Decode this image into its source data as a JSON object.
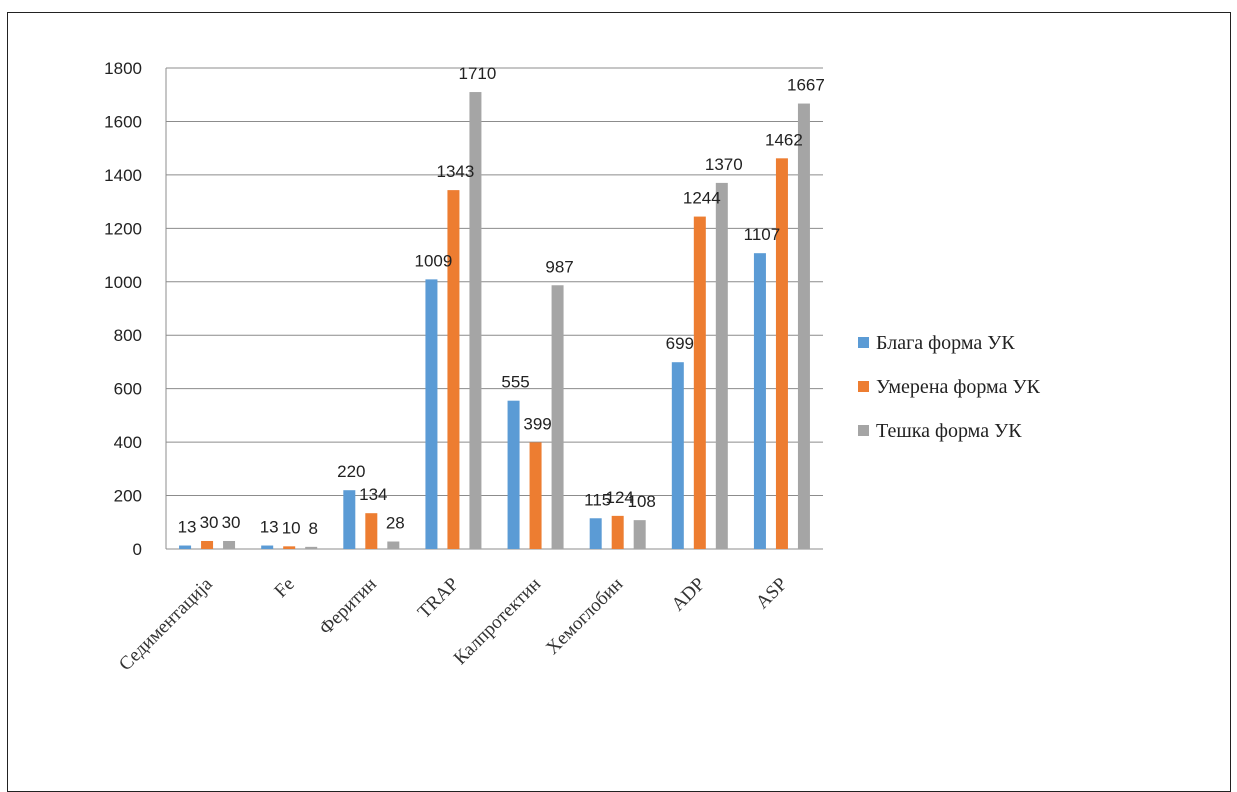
{
  "chart_data": {
    "type": "bar",
    "categories": [
      "Седиментација",
      "Fe",
      "Феритин",
      "TRAP",
      "Калпротектин",
      "Хемоглобин",
      "ADP",
      "ASP"
    ],
    "series": [
      {
        "name": "Блага форма УК",
        "color": "#5b9bd5",
        "values": [
          13,
          13,
          220,
          1009,
          555,
          115,
          699,
          1107
        ]
      },
      {
        "name": "Умерена форма УК",
        "color": "#ed7d31",
        "values": [
          30,
          10,
          134,
          1343,
          399,
          124,
          1244,
          1462
        ]
      },
      {
        "name": "Тешка форма УК",
        "color": "#a5a5a5",
        "values": [
          30,
          8,
          28,
          1710,
          987,
          108,
          1370,
          1667
        ]
      }
    ],
    "ylim": [
      0,
      1800
    ],
    "yticks": [
      0,
      200,
      400,
      600,
      800,
      1000,
      1200,
      1400,
      1600,
      1800
    ],
    "grid": true,
    "legend": "right"
  }
}
